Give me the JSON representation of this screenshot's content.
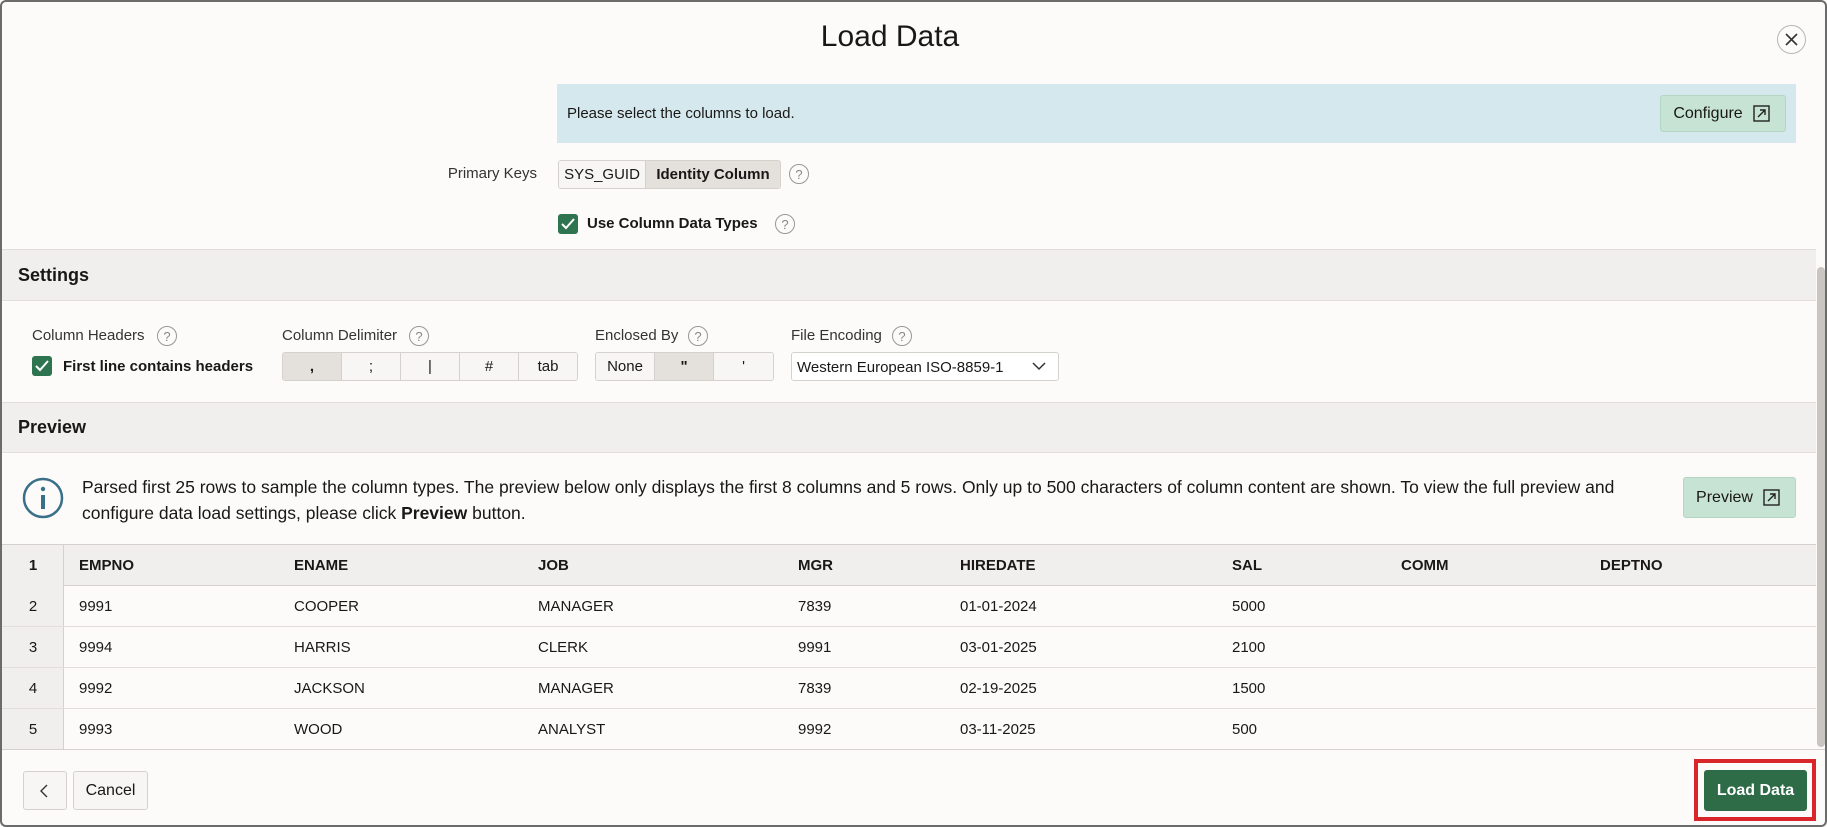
{
  "header": {
    "title": "Load Data"
  },
  "notice": {
    "text": "Please select the columns to load.",
    "button": "Configure"
  },
  "primary_keys": {
    "label": "Primary Keys",
    "options": [
      "SYS_GUID",
      "Identity Column"
    ]
  },
  "use_column_types": {
    "label": "Use Column Data Types"
  },
  "settings": {
    "title": "Settings",
    "column_headers": {
      "label": "Column Headers",
      "checkbox": "First line contains headers"
    },
    "delimiter": {
      "label": "Column Delimiter",
      "options": [
        ",",
        ";",
        "|",
        "#",
        "tab"
      ]
    },
    "enclosed_by": {
      "label": "Enclosed By",
      "options": [
        "None",
        "\"",
        "'"
      ]
    },
    "encoding": {
      "label": "File Encoding",
      "value": "Western European ISO-8859-1"
    }
  },
  "preview": {
    "title": "Preview",
    "info": {
      "before": "Parsed first 25 rows to sample the column types. The preview below only displays the first 8 columns and 5 rows. Only up to 500 characters of column content are shown. To view the full preview and configure data load settings, please click",
      "bold": "Preview",
      "after": "button."
    },
    "button": "Preview"
  },
  "table": {
    "header_number": "1",
    "headers": [
      "EMPNO",
      "ENAME",
      "JOB",
      "MGR",
      "HIREDATE",
      "SAL",
      "COMM",
      "DEPTNO"
    ],
    "rows": [
      {
        "number": "2",
        "cells": [
          "9991",
          "COOPER",
          "MANAGER",
          "7839",
          "01-01-2024",
          "5000"
        ]
      },
      {
        "number": "3",
        "cells": [
          "9994",
          "HARRIS",
          "CLERK",
          "9991",
          "03-01-2025",
          "2100"
        ]
      },
      {
        "number": "4",
        "cells": [
          "9992",
          "JACKSON",
          "MANAGER",
          "7839",
          "02-19-2025",
          "1500"
        ]
      },
      {
        "number": "5",
        "cells": [
          "9993",
          "WOOD",
          "ANALYST",
          "9992",
          "03-11-2025",
          "500"
        ]
      }
    ]
  },
  "footer": {
    "cancel": "Cancel",
    "load": "Load Data"
  }
}
